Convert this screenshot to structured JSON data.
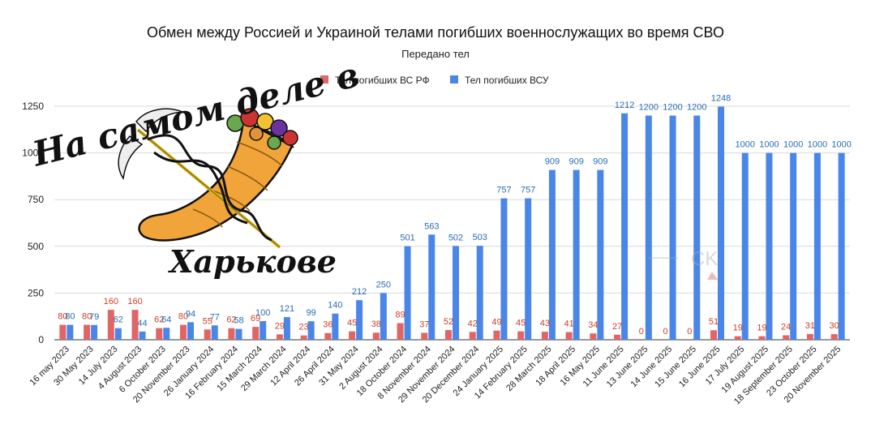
{
  "chart_data": {
    "type": "bar",
    "title": "Обмен между Россией и Украиной телами погибших военнослужащих во время СВО",
    "subtitle": "Передано тел",
    "categories": [
      "16 may 2023",
      "30 May 2023",
      "14 July 2023",
      "4 August 2023",
      "6 October 2023",
      "20 November 2023",
      "26 January 2024",
      "16 February 2024",
      "15 March 2024",
      "29 March 2024",
      "12 April 2024",
      "26 April 2024",
      "31 May 2024",
      "2 August 2024",
      "18 October 2024",
      "8 November 2024",
      "29 November 2024",
      "20 December 2024",
      "24 January 2025",
      "14 February 2025",
      "28 March 2025",
      "18 April 2025",
      "16 May 2025",
      "11 June 2025",
      "13 June 2025",
      "14 June 2025",
      "15 June 2025",
      "16 June 2025",
      "17 July 2025",
      "19 August 2025",
      "18 September 2025",
      "23 October 2025",
      "20 November 2025"
    ],
    "series": [
      {
        "name": "Тел погибших ВС  РФ",
        "color": "#e06666",
        "values": [
          80,
          80,
          160,
          160,
          62,
          80,
          55,
          62,
          69,
          29,
          23,
          36,
          45,
          38,
          89,
          37,
          52,
          42,
          49,
          45,
          43,
          41,
          34,
          27,
          0,
          0,
          0,
          51,
          19,
          19,
          24,
          31,
          30
        ]
      },
      {
        "name": "Тел погибших ВСУ",
        "color": "#4a86e8",
        "values": [
          80,
          79,
          62,
          44,
          64,
          94,
          77,
          58,
          100,
          121,
          99,
          140,
          212,
          250,
          501,
          563,
          502,
          503,
          757,
          757,
          909,
          909,
          909,
          1212,
          1200,
          1200,
          1200,
          1248,
          1000,
          1000,
          1000,
          1000,
          1000
        ]
      }
    ],
    "data_labels": {
      "ru": [
        "80",
        "80",
        "160",
        "160",
        "62",
        "80",
        "55",
        "62",
        "69",
        "29",
        "23",
        "36",
        "45",
        "38",
        "89",
        "37",
        "52",
        "42",
        "49",
        "45",
        "43",
        "41",
        "34",
        "27",
        "0",
        "0",
        "0",
        "51",
        "19",
        "19",
        "24",
        "31",
        "30"
      ],
      "ua": [
        "80",
        "79",
        "62",
        "44",
        "64",
        "94",
        "77",
        "58",
        "100",
        "121",
        "99",
        "140",
        "212",
        "250",
        "501",
        "563",
        "502",
        "503",
        "757",
        "757",
        "909",
        "909",
        "909",
        "1212",
        "1200",
        "1200",
        "1200",
        "1248",
        "1000",
        "1000",
        "1000",
        "1000",
        "1000"
      ]
    },
    "yticks": [
      0,
      250,
      500,
      750,
      1000,
      1250
    ],
    "ylim": [
      0,
      1300
    ],
    "grid": true,
    "legend_position": "top"
  },
  "watermark": {
    "caption_top": "На самом деле в",
    "caption_bottom": "Харькове",
    "corner_mark": "CK"
  }
}
